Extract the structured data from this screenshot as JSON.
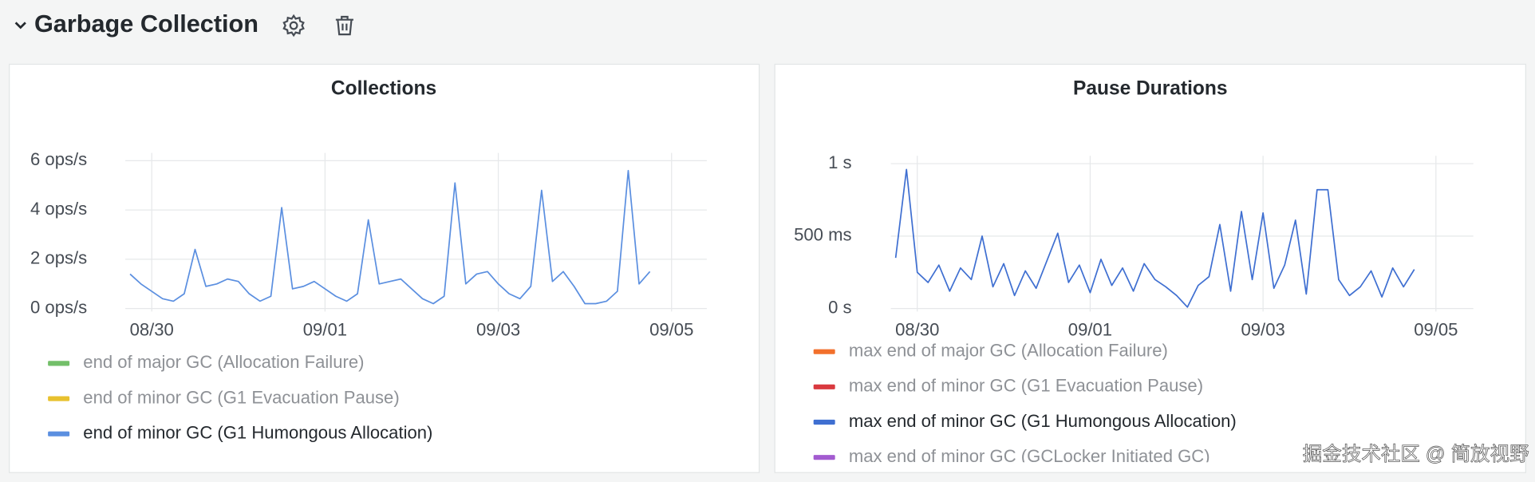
{
  "header": {
    "title": "Garbage Collection"
  },
  "watermark": "掘金技术社区 @ 简放视野",
  "chart_data": [
    {
      "type": "line",
      "title": "Collections",
      "categories": [
        null,
        null,
        "08/30",
        null,
        null,
        null,
        null,
        null,
        null,
        null,
        null,
        null,
        null,
        null,
        null,
        null,
        null,
        null,
        "09/01",
        null,
        null,
        null,
        null,
        null,
        null,
        null,
        null,
        null,
        null,
        null,
        null,
        null,
        null,
        null,
        "09/03",
        null,
        null,
        null,
        null,
        null,
        null,
        null,
        null,
        null,
        null,
        null,
        null,
        null,
        null,
        null,
        "09/05"
      ],
      "series": [
        {
          "name": "end of major GC (Allocation Failure)",
          "color": "#73bf69",
          "values": [
            null,
            null,
            null,
            null,
            null,
            null,
            null,
            null,
            null,
            null,
            null,
            null,
            null,
            null,
            null,
            null,
            null,
            null,
            null,
            null,
            null,
            null,
            null,
            null,
            null,
            null,
            null,
            null,
            null,
            null,
            null,
            null,
            null,
            null,
            null,
            null,
            null,
            null,
            null,
            null,
            null,
            null,
            null,
            null,
            null,
            null,
            null,
            null,
            null,
            null,
            null
          ]
        },
        {
          "name": "end of minor GC (G1 Evacuation Pause)",
          "color": "#e8c12e",
          "values": [
            null,
            null,
            null,
            null,
            null,
            null,
            null,
            null,
            null,
            null,
            null,
            null,
            null,
            null,
            null,
            null,
            null,
            null,
            null,
            null,
            null,
            null,
            null,
            null,
            null,
            null,
            null,
            null,
            null,
            null,
            null,
            null,
            null,
            null,
            null,
            null,
            null,
            null,
            null,
            null,
            null,
            null,
            null,
            null,
            null,
            null,
            null,
            null,
            null,
            null,
            null
          ]
        },
        {
          "name": "end of minor GC (G1 Humongous Allocation)",
          "color": "#5b8fe0",
          "values": [
            1.4,
            1.0,
            0.7,
            0.4,
            0.3,
            0.6,
            2.4,
            0.9,
            1.0,
            1.2,
            1.1,
            0.6,
            0.3,
            0.5,
            4.1,
            0.8,
            0.9,
            1.1,
            0.8,
            0.5,
            0.3,
            0.6,
            3.6,
            1.0,
            1.1,
            1.2,
            0.8,
            0.4,
            0.2,
            0.5,
            5.1,
            1.0,
            1.4,
            1.5,
            1.0,
            0.6,
            0.4,
            0.9,
            4.8,
            1.1,
            1.5,
            0.9,
            0.2,
            0.2,
            0.3,
            0.7,
            5.6,
            1.0,
            1.5,
            null,
            null
          ]
        }
      ],
      "ylim": [
        0,
        6
      ],
      "yticks": [
        {
          "value": 0,
          "label": "0 ops/s"
        },
        {
          "value": 2,
          "label": "2 ops/s"
        },
        {
          "value": 4,
          "label": "4 ops/s"
        },
        {
          "value": 6,
          "label": "6 ops/s"
        }
      ],
      "grid": true
    },
    {
      "type": "line",
      "title": "Pause Durations",
      "categories": [
        null,
        null,
        "08/30",
        null,
        null,
        null,
        null,
        null,
        null,
        null,
        null,
        null,
        null,
        null,
        null,
        null,
        null,
        null,
        "09/01",
        null,
        null,
        null,
        null,
        null,
        null,
        null,
        null,
        null,
        null,
        null,
        null,
        null,
        null,
        null,
        "09/03",
        null,
        null,
        null,
        null,
        null,
        null,
        null,
        null,
        null,
        null,
        null,
        null,
        null,
        null,
        null,
        "09/05"
      ],
      "series": [
        {
          "name": "max end of major GC (Allocation Failure)",
          "color": "#f2702c",
          "values": [
            null,
            null,
            null,
            null,
            null,
            null,
            null,
            null,
            null,
            null,
            null,
            null,
            null,
            null,
            null,
            null,
            null,
            null,
            null,
            null,
            null,
            null,
            null,
            null,
            null,
            null,
            null,
            null,
            null,
            null,
            null,
            null,
            null,
            null,
            null,
            null,
            null,
            null,
            null,
            null,
            null,
            null,
            null,
            null,
            null,
            null,
            null,
            null,
            null,
            null,
            null
          ]
        },
        {
          "name": "max end of minor GC (G1 Evacuation Pause)",
          "color": "#d9393f",
          "values": [
            null,
            null,
            null,
            null,
            null,
            null,
            null,
            null,
            null,
            null,
            null,
            null,
            null,
            null,
            null,
            null,
            null,
            null,
            null,
            null,
            null,
            null,
            null,
            null,
            null,
            null,
            null,
            null,
            null,
            null,
            null,
            null,
            null,
            null,
            null,
            null,
            null,
            null,
            null,
            null,
            null,
            null,
            null,
            null,
            null,
            null,
            null,
            null,
            null,
            null,
            null
          ]
        },
        {
          "name": "max end of minor GC (G1 Humongous Allocation)",
          "color": "#3f6fd1",
          "values": [
            350,
            960,
            250,
            180,
            300,
            120,
            280,
            200,
            500,
            150,
            310,
            90,
            260,
            140,
            330,
            520,
            180,
            300,
            110,
            340,
            160,
            280,
            120,
            310,
            200,
            150,
            90,
            10,
            160,
            220,
            580,
            120,
            670,
            200,
            660,
            140,
            300,
            610,
            100,
            820,
            820,
            200,
            90,
            150,
            260,
            80,
            280,
            150,
            270,
            null,
            null
          ]
        },
        {
          "name": "max end of minor GC (GCLocker Initiated GC)",
          "color": "#a35bd0",
          "values": [
            null,
            null,
            null,
            null,
            null,
            null,
            null,
            null,
            null,
            null,
            null,
            null,
            null,
            null,
            null,
            null,
            null,
            null,
            null,
            null,
            null,
            null,
            null,
            null,
            null,
            null,
            null,
            null,
            null,
            null,
            null,
            null,
            null,
            null,
            null,
            null,
            null,
            null,
            null,
            null,
            null,
            null,
            null,
            null,
            null,
            null,
            null,
            null,
            null,
            null,
            null
          ]
        }
      ],
      "ylim": [
        0,
        1000
      ],
      "yticks": [
        {
          "value": 0,
          "label": "0 s"
        },
        {
          "value": 500,
          "label": "500 ms"
        },
        {
          "value": 1000,
          "label": "1 s"
        }
      ],
      "grid": true
    }
  ]
}
